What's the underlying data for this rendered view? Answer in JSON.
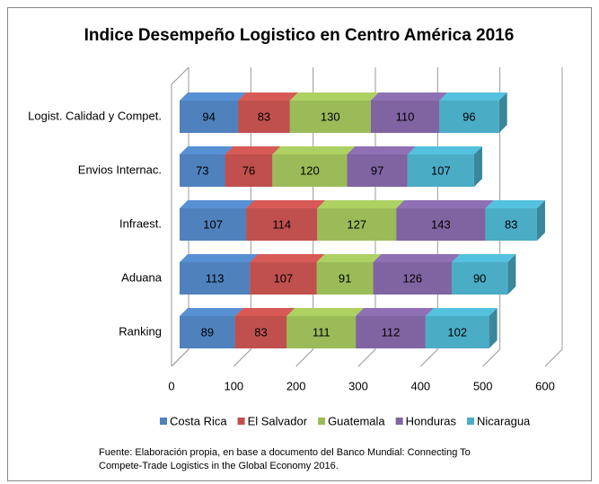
{
  "chart_data": {
    "type": "bar",
    "orientation": "horizontal",
    "stacked": true,
    "3d": true,
    "title": "Indice Desempeño Logistico en Centro América 2016",
    "categories": [
      "Logist. Calidad y Compet.",
      "Envios Internac.",
      "Infraest.",
      "Aduana",
      "Ranking"
    ],
    "series": [
      {
        "name": "Costa Rica",
        "color": "#4f81bd",
        "values": [
          94,
          73,
          107,
          113,
          89
        ]
      },
      {
        "name": "El Salvador",
        "color": "#c0504d",
        "values": [
          83,
          76,
          114,
          107,
          83
        ]
      },
      {
        "name": "Guatemala",
        "color": "#9bbb59",
        "values": [
          130,
          120,
          127,
          91,
          111
        ]
      },
      {
        "name": "Honduras",
        "color": "#8064a2",
        "values": [
          110,
          97,
          143,
          126,
          112
        ]
      },
      {
        "name": "Nicaragua",
        "color": "#4bacc6",
        "values": [
          96,
          107,
          83,
          90,
          102
        ]
      }
    ],
    "xlim": [
      0,
      600
    ],
    "xticks": [
      0,
      100,
      200,
      300,
      400,
      500,
      600
    ],
    "grid": true,
    "legend": "bottom",
    "note": [
      "Fuente: Elaboración propia,  en base a documento del Banco Mundial: Connecting To",
      "Compete-Trade Logistics in the Global Economy 2016."
    ]
  }
}
